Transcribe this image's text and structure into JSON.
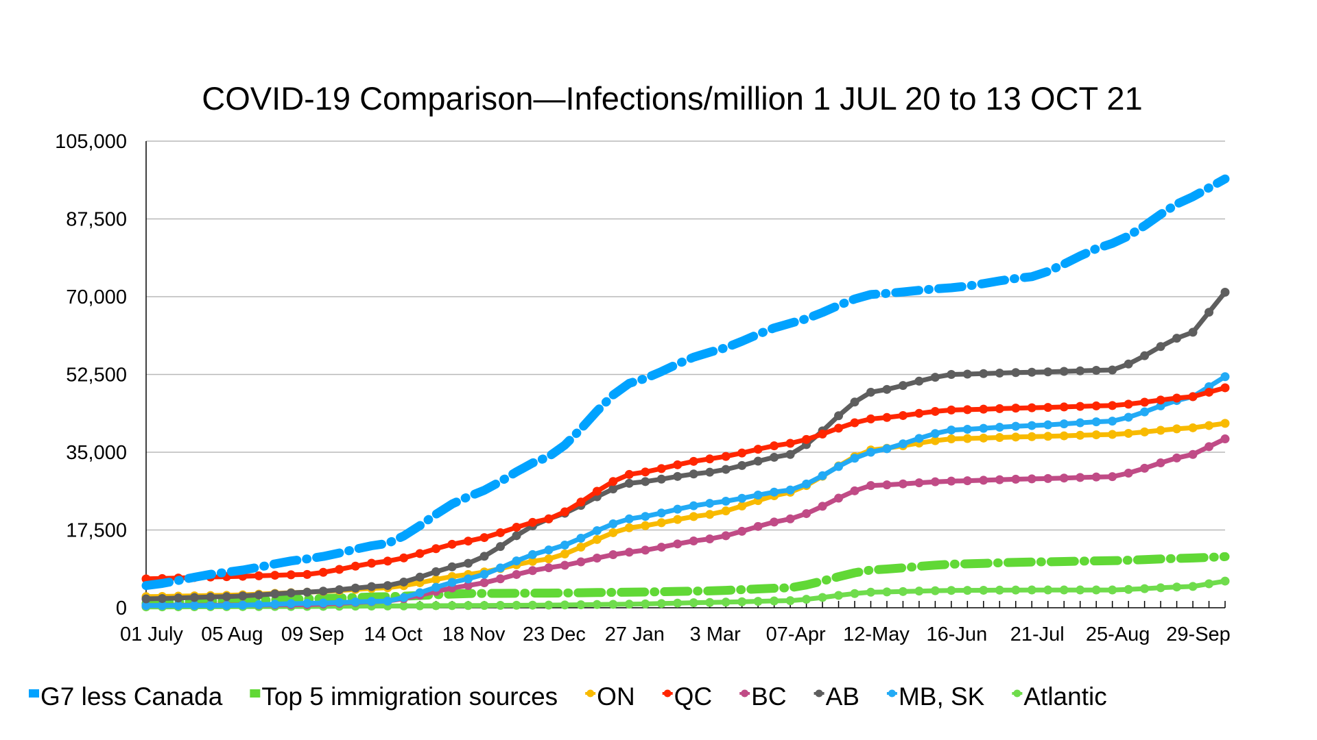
{
  "chart_data": {
    "type": "line",
    "title": "COVID-19 Comparison—Infections/million 1 JUL 20 to 13 OCT 21",
    "xlabel": "",
    "ylabel": "",
    "ylim": [
      0,
      105000
    ],
    "yticks": [
      0,
      17500,
      35000,
      52500,
      70000,
      87500,
      105000
    ],
    "ytick_labels": [
      "0",
      "17,500",
      "35,000",
      "52,500",
      "70,000",
      "87,500",
      "105,000"
    ],
    "grid": true,
    "legend_position": "bottom",
    "x_points": 68,
    "x_interval": "weekly",
    "x_tick_labels": [
      {
        "index": 0,
        "label": "01 July"
      },
      {
        "index": 5,
        "label": "05 Aug"
      },
      {
        "index": 10,
        "label": "09 Sep"
      },
      {
        "index": 15,
        "label": "14 Oct"
      },
      {
        "index": 20,
        "label": "18 Nov"
      },
      {
        "index": 25,
        "label": "23 Dec"
      },
      {
        "index": 30,
        "label": "27 Jan"
      },
      {
        "index": 35,
        "label": "3 Mar"
      },
      {
        "index": 40,
        "label": "07-Apr"
      },
      {
        "index": 45,
        "label": "12-May"
      },
      {
        "index": 50,
        "label": "16-Jun"
      },
      {
        "index": 55,
        "label": "21-Jul"
      },
      {
        "index": 60,
        "label": "25-Aug"
      },
      {
        "index": 65,
        "label": "29-Sep"
      }
    ],
    "keyframe_indices": [
      0,
      5,
      10,
      15,
      20,
      25,
      30,
      35,
      40,
      45,
      50,
      55,
      60,
      65,
      67
    ],
    "series": [
      {
        "name": "G7 less Canada",
        "color": "#00a2ff",
        "style": "dash-dot-thick",
        "values": [
          5000,
          8000,
          11000,
          14500,
          25000,
          34000,
          50500,
          57500,
          64000,
          70500,
          72000,
          74500,
          82000,
          92500,
          96500
        ]
      },
      {
        "name": "Top 5 immigration sources",
        "color": "#61d836",
        "style": "dash-dot-thick",
        "values": [
          1000,
          1500,
          2000,
          2500,
          3200,
          3300,
          3500,
          3800,
          4500,
          8500,
          9800,
          10300,
          10600,
          11200,
          11500
        ]
      },
      {
        "name": "ON",
        "color": "#f8ba00",
        "style": "line-markers",
        "values": [
          2500,
          2800,
          3500,
          4500,
          7500,
          11000,
          18000,
          21000,
          26000,
          35500,
          38000,
          38500,
          39000,
          40500,
          41500
        ]
      },
      {
        "name": "QC",
        "color": "#ff2600",
        "style": "line-markers",
        "values": [
          6500,
          7000,
          7500,
          10500,
          15000,
          20000,
          30000,
          33500,
          37000,
          42500,
          44500,
          45000,
          45500,
          47500,
          49500
        ]
      },
      {
        "name": "BC",
        "color": "#c04b86",
        "style": "line-markers",
        "values": [
          500,
          600,
          700,
          1500,
          5000,
          9000,
          12500,
          15500,
          20000,
          27500,
          28500,
          29000,
          29500,
          34500,
          38000
        ]
      },
      {
        "name": "AB",
        "color": "#5e5e5e",
        "style": "line-markers",
        "values": [
          2000,
          2500,
          3500,
          5000,
          10000,
          20000,
          28000,
          30500,
          34500,
          48500,
          52500,
          53000,
          53500,
          62000,
          71000
        ]
      },
      {
        "name": "MB, SK",
        "color": "#22aaf5",
        "style": "line-markers",
        "values": [
          500,
          500,
          1000,
          1500,
          6500,
          13000,
          20000,
          23500,
          26500,
          35000,
          40000,
          41000,
          42000,
          47500,
          52000
        ]
      },
      {
        "name": "Atlantic",
        "color": "#6fdc4c",
        "style": "line-markers",
        "values": [
          200,
          250,
          300,
          400,
          500,
          600,
          800,
          1200,
          1600,
          3500,
          3900,
          4000,
          4000,
          4800,
          6000
        ]
      }
    ]
  }
}
